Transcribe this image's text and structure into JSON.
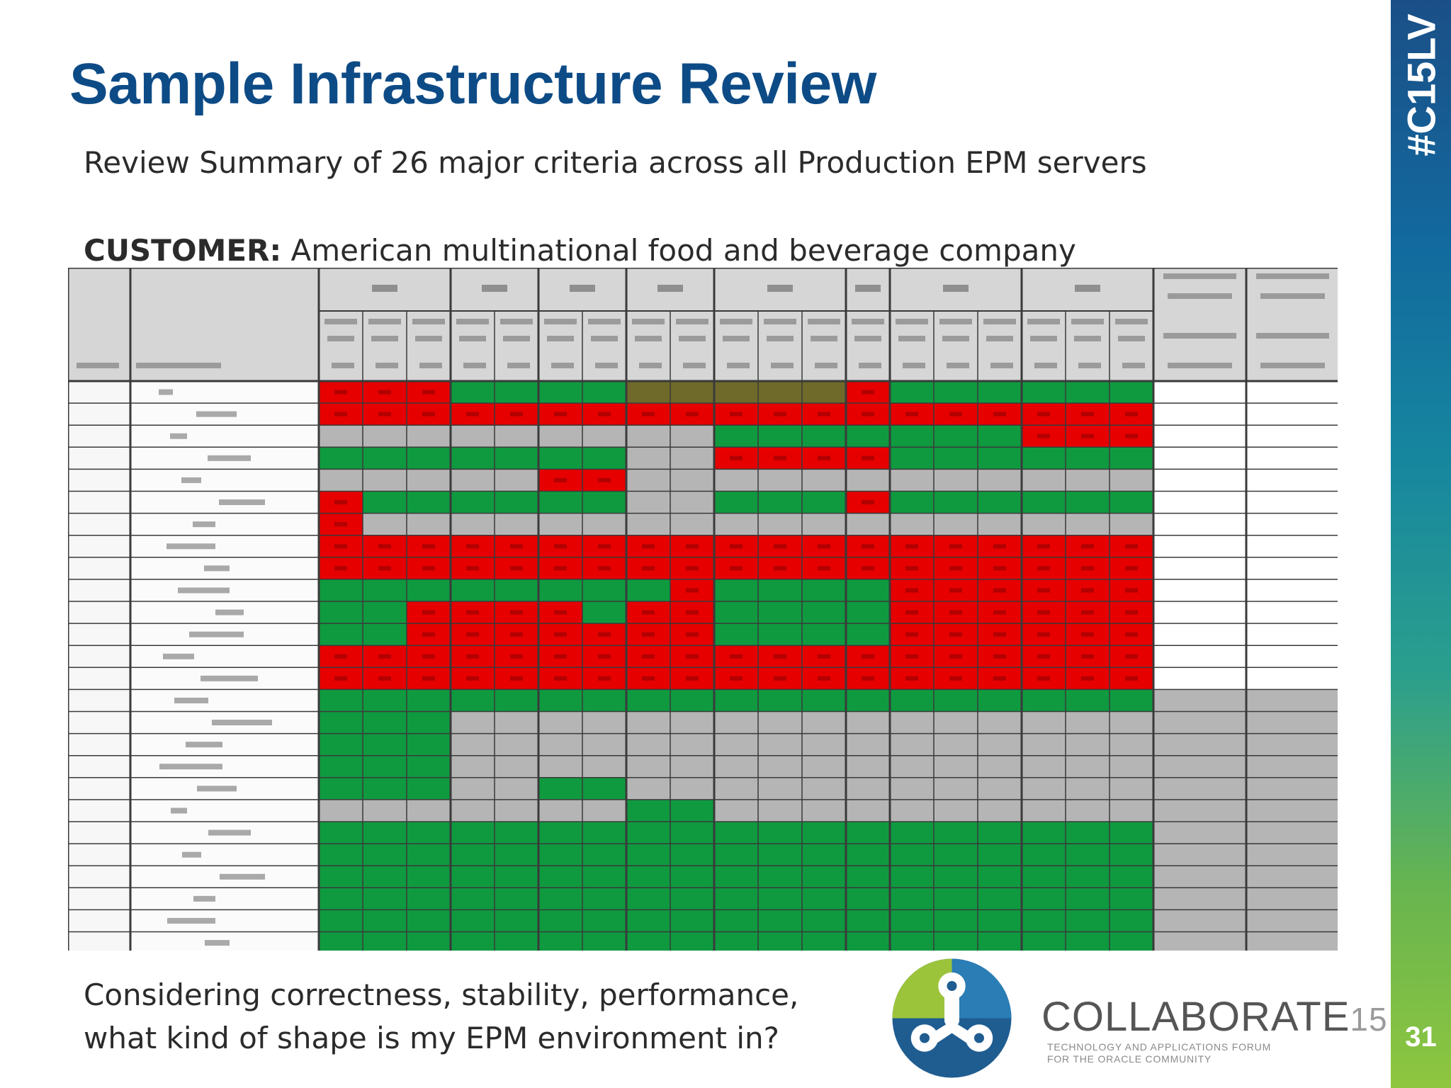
{
  "slide": {
    "title": "Sample Infrastructure Review",
    "subtitle": "Review Summary of 26 major criteria across all Production EPM servers",
    "customer_label": "CUSTOMER:",
    "customer_value": " American multinational food and beverage company",
    "question_line1": "Considering correctness, stability, performance,",
    "question_line2": "what kind of shape is my EPM environment in?",
    "hashtag": "#C15LV",
    "page_number": "31"
  },
  "logo": {
    "name": "COLLABORATE",
    "number": "15",
    "tagline_line1": "TECHNOLOGY AND APPLICATIONS FORUM",
    "tagline_line2": "FOR THE ORACLE COMMUNITY"
  },
  "colors": {
    "title": "#0d4b86",
    "status_red": "#e60000",
    "status_green": "#0f9a40",
    "status_gray": "#b5b5b5",
    "grid_line": "#3a3a3a"
  },
  "review_matrix": {
    "legend": {
      "R": "red",
      "G": "green",
      "N": "gray",
      "D": "dark",
      "W": "white"
    },
    "rows": [
      "RRRGGGGDDDDDRGGGGGGWW",
      "RRRRRRRRRRRRRRRRRRRWW",
      "NNNNNNNNNGGGGGGGRRRWW",
      "GGGGGGGNNRRRRGGGGGGWW",
      "NNNNNRRNNNNNNNNNNNNWW",
      "RGGGGGGNNGGGRGGGGGGWW",
      "RNNNNNNNNNNNNNNNNNNWW",
      "RRRRRRRRRRRRRRRRRRRWW",
      "RRRRRRRRRRRRRRRRRRRWW",
      "GGGGGGGGRGGGGRRRRRRWW",
      "GGRRRRGRRGGGGRRRRRRWW",
      "GGRRRRRRRGGGGRRRRRRWW",
      "RRRRRRRRRRRRRRRRRRRWW",
      "RRRRRRRRRRRRRRRRRRRWW",
      "GGGGGGGGGGGGGGGGGGGNN",
      "GGGNNNNNNNNNNNNNNNNNN",
      "GGGNNNNNNNNNNNNNNNNNN",
      "GGGNNNNNNNNNNNNNNNNNN",
      "GGGNNGGNNNNNNNNNNNNNN",
      "NNNNNNNGGNNNNNNNNNNNN",
      "GGGGGGGGGGGGGGGGGGGNN",
      "GGGGGGGGGGGGGGGGGGGNN",
      "GGGGGGGGGGGGGGGGGGGNN",
      "GGGGGGGGGGGGGGGGGGGNN",
      "GGGGGGGGGGGGGGGGGGGNN",
      "GGGGGGGGGGGGGGGGGGGNN"
    ]
  }
}
